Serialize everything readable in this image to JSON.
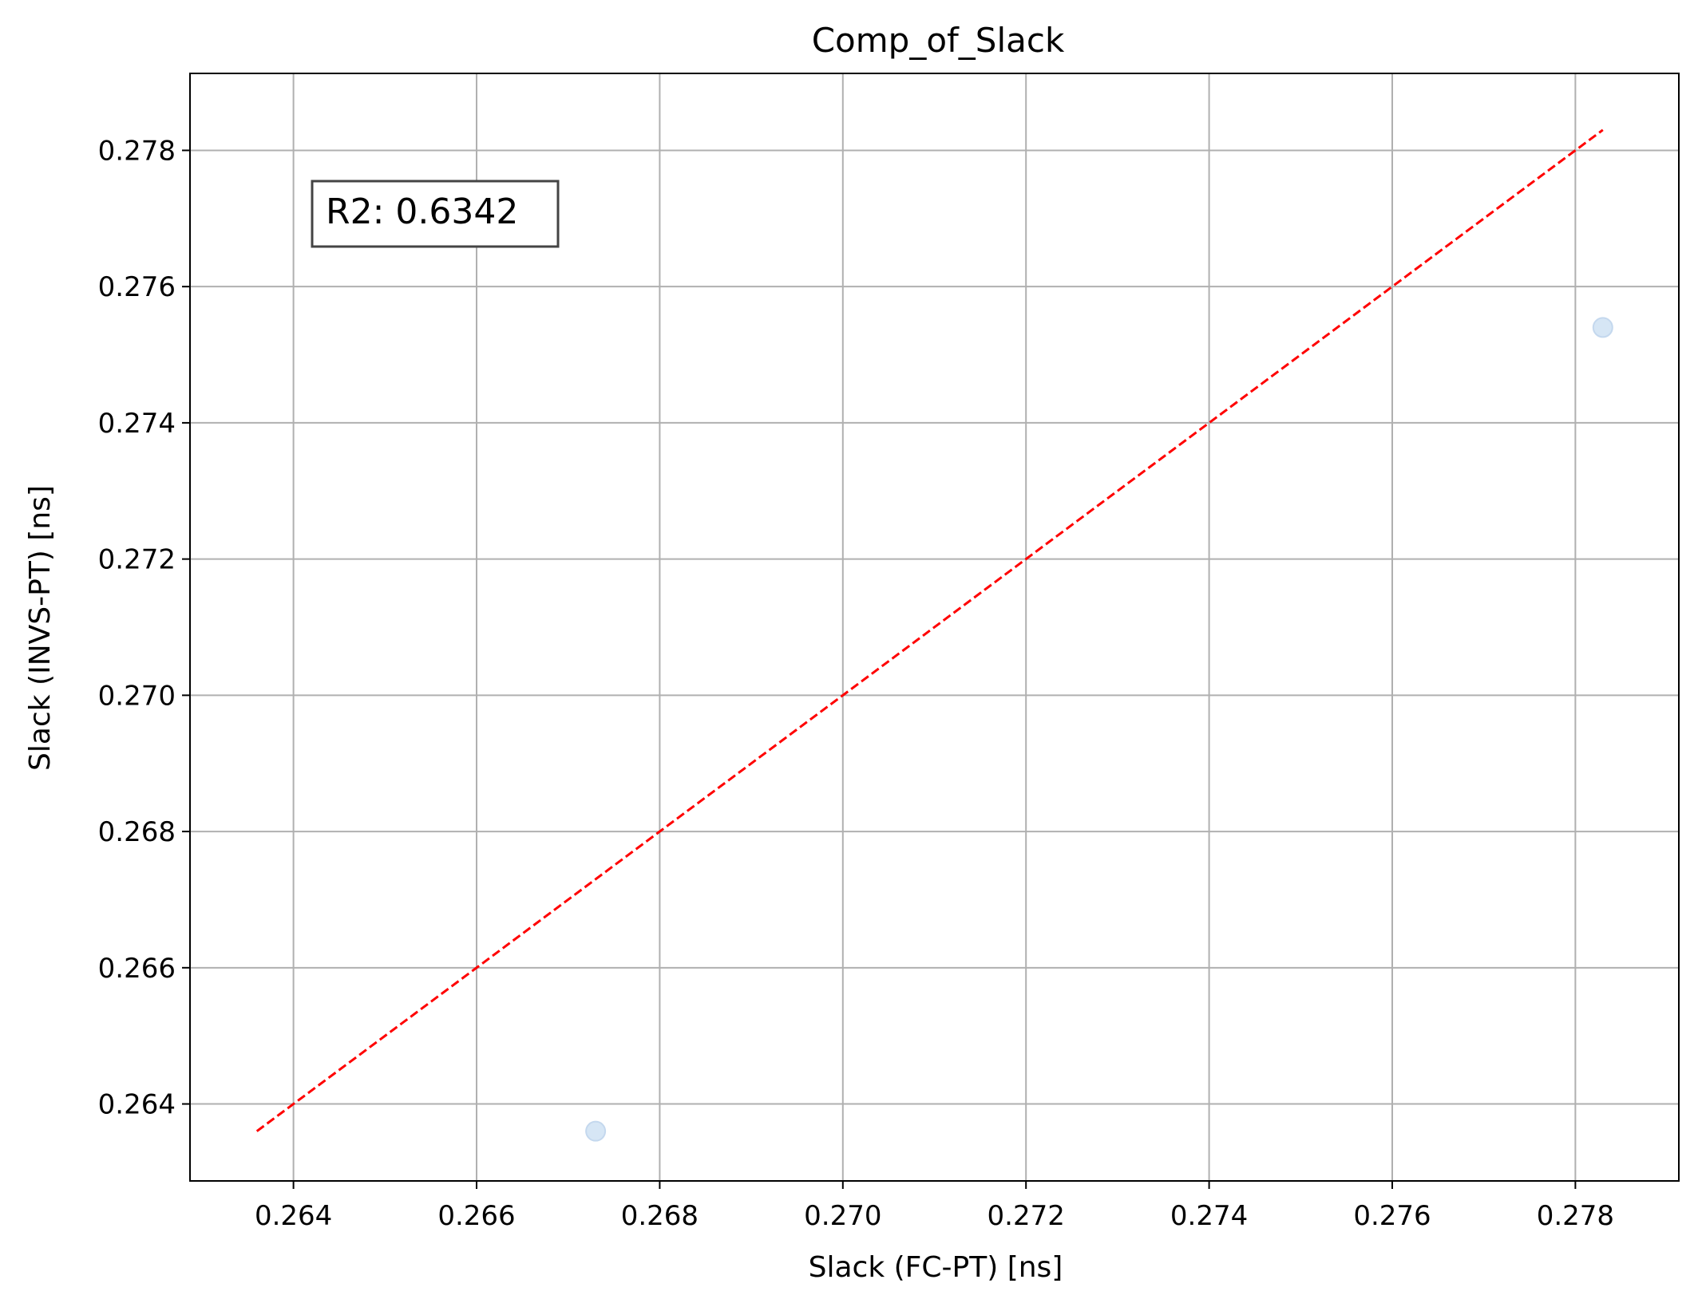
{
  "chart_data": {
    "type": "scatter",
    "title": "Comp_of_Slack",
    "xlabel": "Slack (FC-PT) [ns]",
    "ylabel": "Slack (INVS-PT) [ns]",
    "xlim": [
      0.26287,
      0.27913
    ],
    "ylim": [
      0.26287,
      0.27913
    ],
    "xticks": [
      "0.264",
      "0.266",
      "0.268",
      "0.270",
      "0.272",
      "0.274",
      "0.276",
      "0.278"
    ],
    "yticks": [
      "0.264",
      "0.266",
      "0.268",
      "0.270",
      "0.272",
      "0.274",
      "0.276",
      "0.278"
    ],
    "grid": true,
    "points": [
      {
        "x": 0.2673,
        "y": 0.2636
      },
      {
        "x": 0.2783,
        "y": 0.2754
      }
    ],
    "reference_line": {
      "x": [
        0.2636,
        0.2783
      ],
      "y": [
        0.2636,
        0.2783
      ],
      "style": "dashed",
      "color": "#ff0000"
    },
    "annotation": "R2: 0.6342",
    "point_color": "#d6e6f5"
  }
}
